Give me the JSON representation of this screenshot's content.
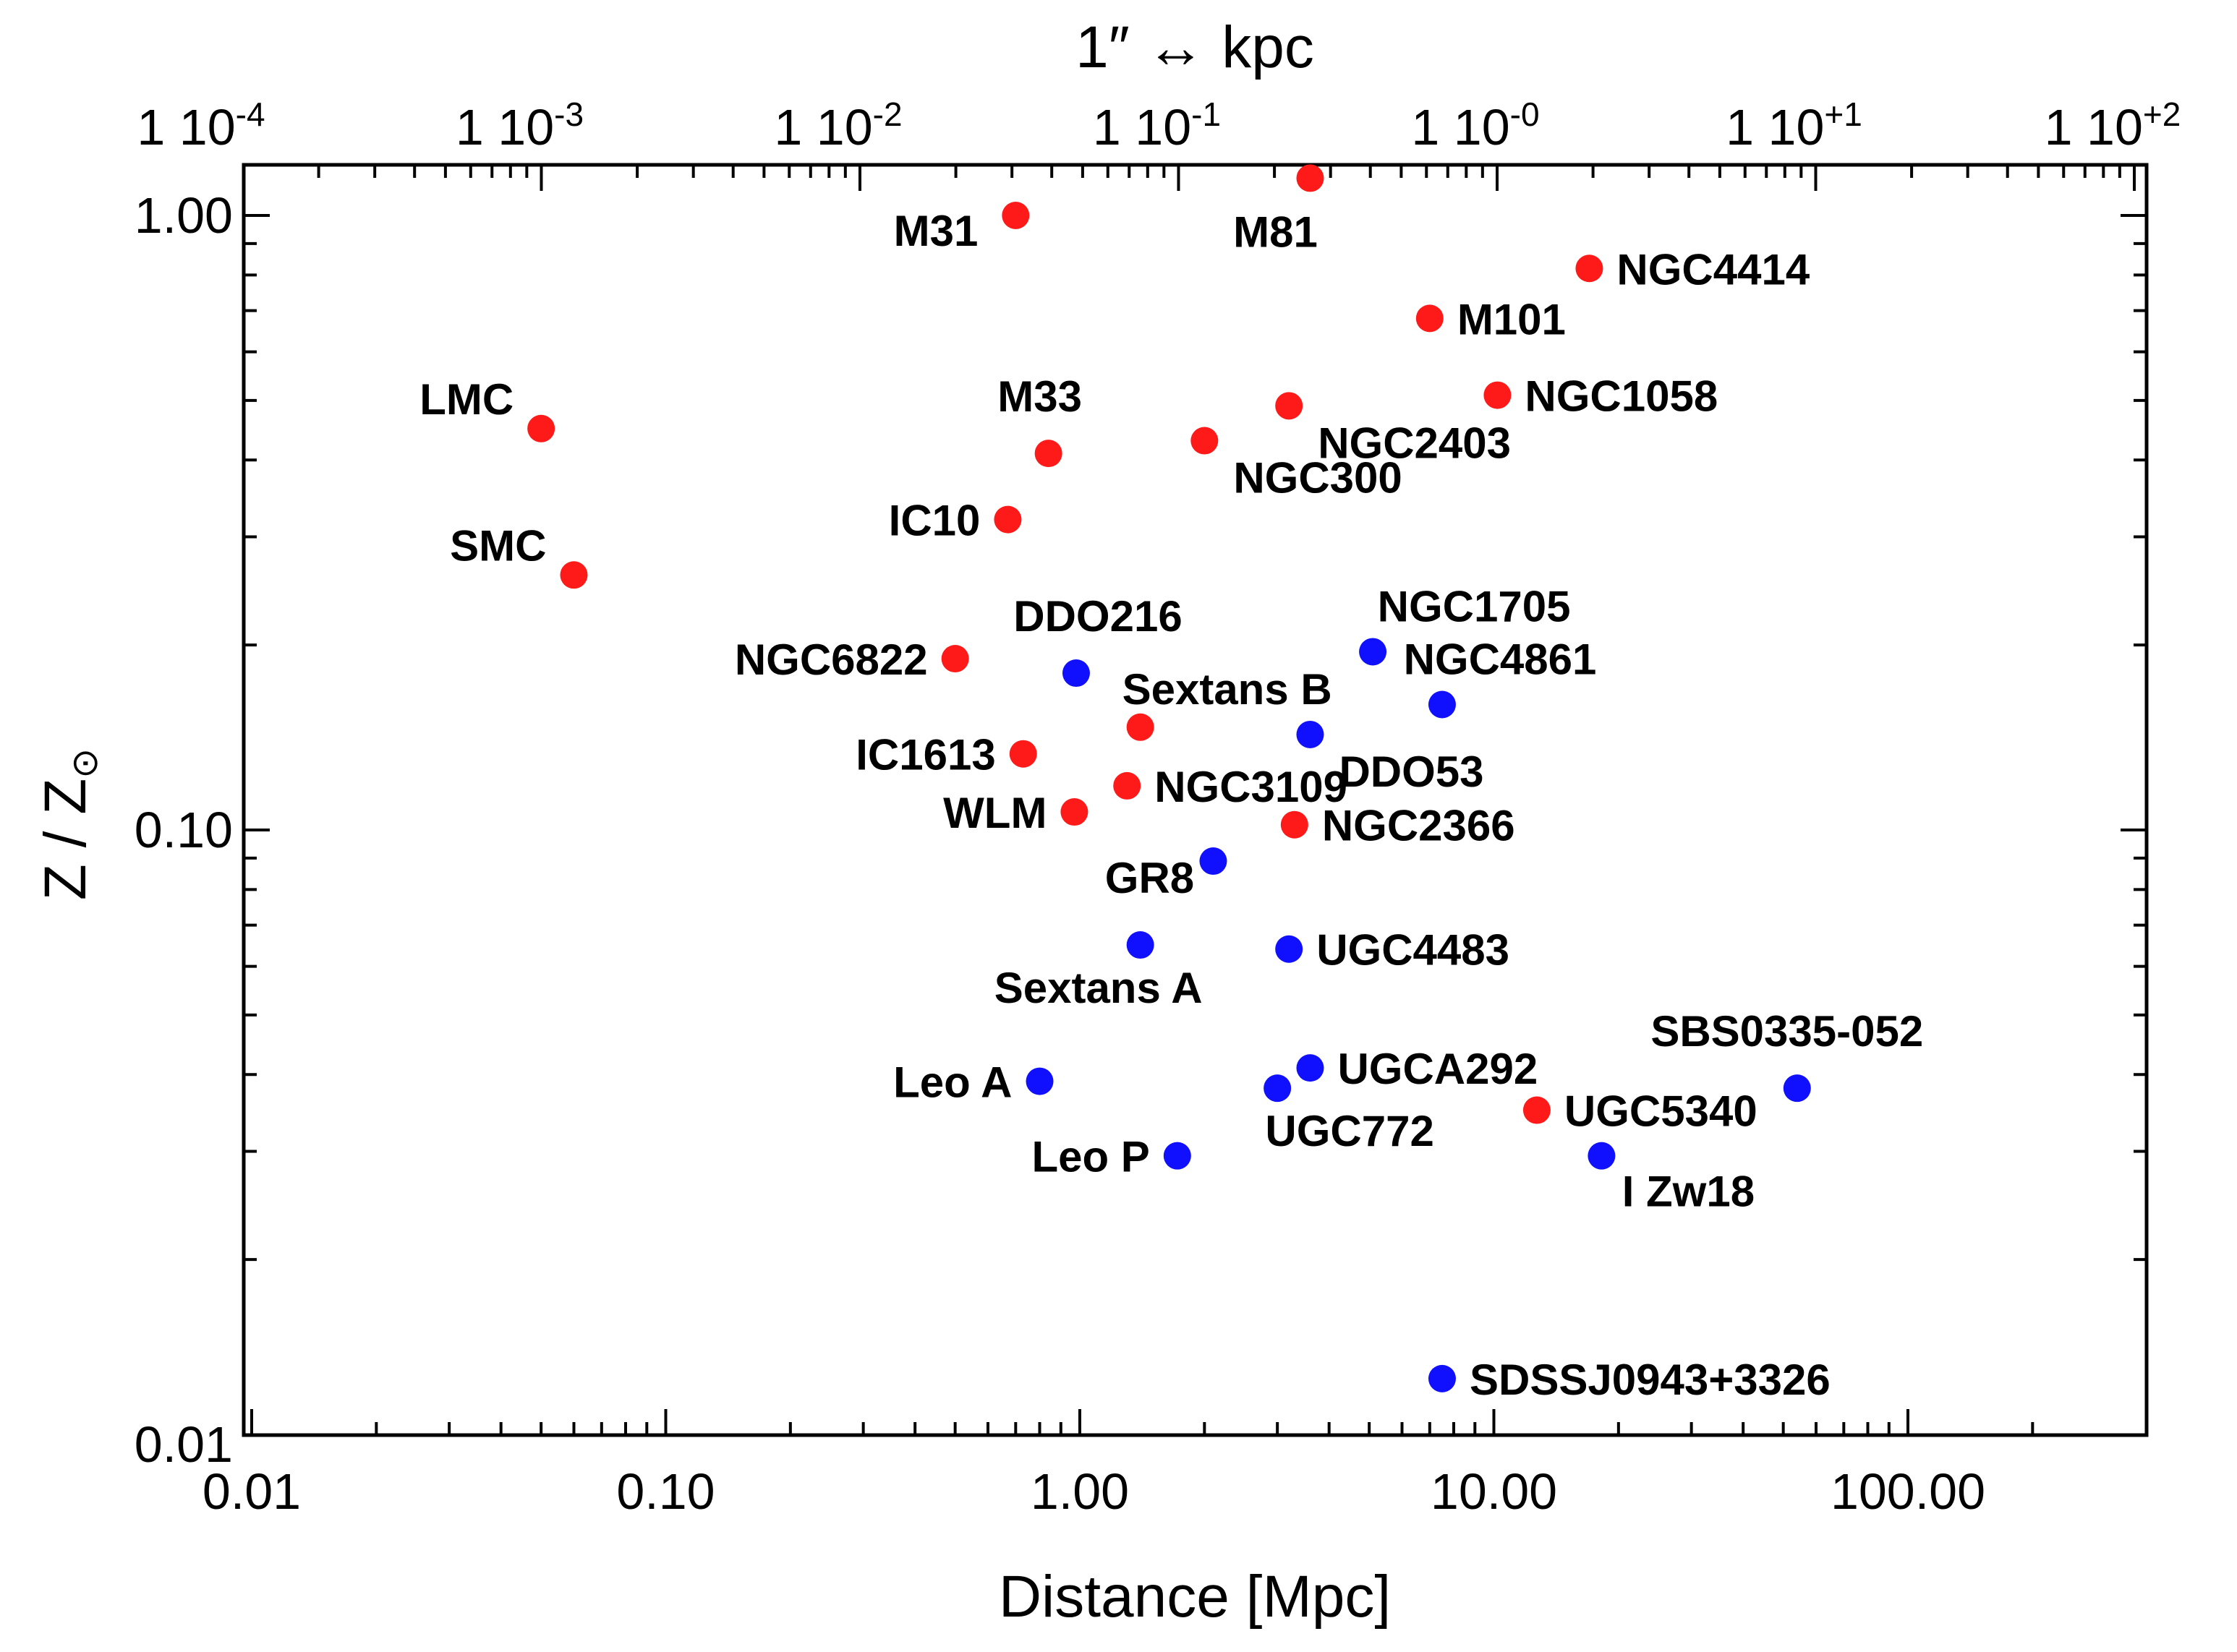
{
  "chart_data": {
    "type": "scatter",
    "xlabel": "Distance [Mpc]",
    "ylabel": "Z / Z",
    "ylabel_subscript": "⊙",
    "top_axis_title": "1″ ↔ kpc",
    "xscale": "log",
    "yscale": "log",
    "xlim": [
      0.01,
      200
    ],
    "ylim": [
      0.01,
      1.2
    ],
    "x_ticklabels": [
      {
        "value": 0.01,
        "label": "0.01"
      },
      {
        "value": 0.1,
        "label": "0.10"
      },
      {
        "value": 1,
        "label": "1.00"
      },
      {
        "value": 10,
        "label": "10.00"
      },
      {
        "value": 100,
        "label": "100.00"
      }
    ],
    "y_ticklabels": [
      {
        "value": 0.01,
        "label": "0.01"
      },
      {
        "value": 0.1,
        "label": "0.10"
      },
      {
        "value": 1,
        "label": "1.00"
      }
    ],
    "top_ticklabels": [
      {
        "kpc": 0.0001,
        "base": "1 10",
        "exp": "-4"
      },
      {
        "kpc": 0.001,
        "base": "1 10",
        "exp": "-3"
      },
      {
        "kpc": 0.01,
        "base": "1 10",
        "exp": "-2"
      },
      {
        "kpc": 0.1,
        "base": "1 10",
        "exp": "-1"
      },
      {
        "kpc": 1,
        "base": "1 10",
        "exp": "-0"
      },
      {
        "kpc": 10,
        "base": "1 10",
        "exp": "+1"
      },
      {
        "kpc": 100,
        "base": "1 10",
        "exp": "+2"
      }
    ],
    "grid": false,
    "legend": "none",
    "colors": {
      "red": "#ff1a1a",
      "blue": "#1010ff"
    },
    "points": [
      {
        "name": "M31",
        "x": 0.7,
        "y": 1.0,
        "color": "red",
        "label_pos": "lower-left"
      },
      {
        "name": "M81",
        "x": 3.6,
        "y": 1.15,
        "color": "red",
        "label_pos": "below-left"
      },
      {
        "name": "NGC4414",
        "x": 17.0,
        "y": 0.82,
        "color": "red",
        "label_pos": "right"
      },
      {
        "name": "M101",
        "x": 7.0,
        "y": 0.68,
        "color": "red",
        "label_pos": "right"
      },
      {
        "name": "NGC1058",
        "x": 10.2,
        "y": 0.51,
        "color": "red",
        "label_pos": "right"
      },
      {
        "name": "LMC",
        "x": 0.05,
        "y": 0.45,
        "color": "red",
        "label_pos": "upper-left"
      },
      {
        "name": "M33",
        "x": 0.84,
        "y": 0.41,
        "color": "red",
        "label_pos": "above"
      },
      {
        "name": "NGC2403",
        "x": 3.2,
        "y": 0.49,
        "color": "red",
        "label_pos": "below-right"
      },
      {
        "name": "NGC300",
        "x": 2.0,
        "y": 0.43,
        "color": "red",
        "label_pos": "below-right"
      },
      {
        "name": "IC10",
        "x": 0.67,
        "y": 0.32,
        "color": "red",
        "label_pos": "left"
      },
      {
        "name": "SMC",
        "x": 0.06,
        "y": 0.26,
        "color": "red",
        "label_pos": "upper-left"
      },
      {
        "name": "NGC6822",
        "x": 0.5,
        "y": 0.19,
        "color": "red",
        "label_pos": "left"
      },
      {
        "name": "DDO216",
        "x": 0.98,
        "y": 0.18,
        "color": "blue",
        "label_pos": "above-right"
      },
      {
        "name": "NGC1705",
        "x": 5.1,
        "y": 0.195,
        "color": "blue",
        "label_pos": "above-right"
      },
      {
        "name": "Sextans B",
        "x": 1.4,
        "y": 0.147,
        "color": "red",
        "label_pos": "above-right"
      },
      {
        "name": "NGC4861",
        "x": 7.5,
        "y": 0.16,
        "color": "blue",
        "label_pos": "above-right"
      },
      {
        "name": "DDO53",
        "x": 3.6,
        "y": 0.143,
        "color": "blue",
        "label_pos": "below-right"
      },
      {
        "name": "IC1613",
        "x": 0.73,
        "y": 0.133,
        "color": "red",
        "label_pos": "left"
      },
      {
        "name": "NGC3109",
        "x": 1.3,
        "y": 0.118,
        "color": "red",
        "label_pos": "right"
      },
      {
        "name": "WLM",
        "x": 0.97,
        "y": 0.107,
        "color": "red",
        "label_pos": "left"
      },
      {
        "name": "NGC2366",
        "x": 3.3,
        "y": 0.102,
        "color": "red",
        "label_pos": "right"
      },
      {
        "name": "GR8",
        "x": 2.1,
        "y": 0.089,
        "color": "blue",
        "label_pos": "below-left"
      },
      {
        "name": "Sextans A",
        "x": 1.4,
        "y": 0.065,
        "color": "blue",
        "label_pos": "below-left"
      },
      {
        "name": "UGC4483",
        "x": 3.2,
        "y": 0.064,
        "color": "blue",
        "label_pos": "right"
      },
      {
        "name": "Leo A",
        "x": 0.8,
        "y": 0.039,
        "color": "blue",
        "label_pos": "left"
      },
      {
        "name": "UGCA292",
        "x": 3.6,
        "y": 0.041,
        "color": "blue",
        "label_pos": "right"
      },
      {
        "name": "UGC772",
        "x": 3.0,
        "y": 0.038,
        "color": "blue",
        "label_pos": "below"
      },
      {
        "name": "SBS0335-052",
        "x": 54.0,
        "y": 0.038,
        "color": "blue",
        "label_pos": "above"
      },
      {
        "name": "UGC5340",
        "x": 12.7,
        "y": 0.035,
        "color": "red",
        "label_pos": "right"
      },
      {
        "name": "Leo P",
        "x": 1.72,
        "y": 0.0295,
        "color": "blue",
        "label_pos": "left"
      },
      {
        "name": "I Zw18",
        "x": 18.2,
        "y": 0.0295,
        "color": "blue",
        "label_pos": "below-right"
      },
      {
        "name": "SDSSJ0943+3326",
        "x": 7.5,
        "y": 0.0128,
        "color": "blue",
        "label_pos": "right"
      }
    ]
  }
}
